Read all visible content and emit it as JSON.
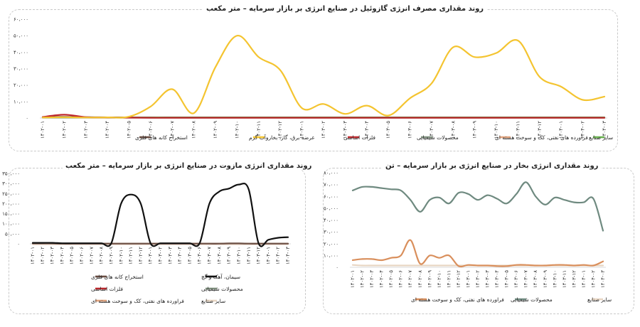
{
  "chart_data": [
    {
      "type": "line",
      "title": "روند مقداری مصرف انرژی گازوئیل در صنایع انرژی بر بازار سرمایه – متر مکعب",
      "yticks": [
        "۰",
        "۱۰،۰۰۰",
        "۲۰،۰۰۰",
        "۳۰،۰۰۰",
        "۴۰،۰۰۰",
        "۵۰،۰۰۰",
        "۶۰،۰۰۰"
      ],
      "ylim": [
        0,
        60000
      ],
      "grid": false,
      "legend": "bottom",
      "categories": [
        "۱۴۰۲-۰۱",
        "۱۴۰۲-۰۲",
        "۱۴۰۲-۰۳",
        "۱۴۰۲-۰۴",
        "۱۴۰۲-۰۵",
        "۱۴۰۲-۰۶",
        "۱۴۰۲-۰۷",
        "۱۴۰۲-۰۸",
        "۱۴۰۲-۰۹",
        "۱۴۰۲-۱۰",
        "۱۴۰۲-۱۱",
        "۱۴۰۲-۱۲",
        "۱۴۰۳-۰۱",
        "۱۴۰۳-۰۲",
        "۱۴۰۳-۰۳",
        "۱۴۰۳-۰۴",
        "۱۴۰۳-۰۵",
        "۱۴۰۳-۰۶",
        "۱۴۰۳-۰۷",
        "۱۴۰۳-۰۸",
        "۱۴۰۳-۰۹",
        "۱۴۰۳-۱۰",
        "۱۴۰۳-۱۱",
        "۱۴۰۳-۱۲",
        "۱۴۰۴-۰۱",
        "۱۴۰۴-۰۲",
        "۱۴۰۴-۰۳"
      ],
      "series": [
        {
          "name": "استخراج کانه های فلزی",
          "color": "#6b4e43",
          "values": [
            600,
            700,
            500,
            400,
            300,
            200,
            200,
            200,
            200,
            200,
            200,
            200,
            200,
            200,
            200,
            200,
            200,
            200,
            200,
            200,
            200,
            200,
            200,
            200,
            200,
            200,
            200
          ]
        },
        {
          "name": "عرضه برق، گاز، بخاروآب گرم",
          "color": "#f4c430",
          "values": [
            300,
            500,
            300,
            400,
            800,
            7000,
            17500,
            3000,
            31000,
            50000,
            37000,
            29000,
            6000,
            8500,
            2500,
            7500,
            1500,
            12000,
            21000,
            43000,
            37000,
            39500,
            47000,
            25000,
            19000,
            11000,
            13000
          ]
        },
        {
          "name": "فلزات اساسی",
          "color": "#c0282d",
          "values": [
            600,
            2000,
            500,
            300,
            200,
            150,
            150,
            150,
            150,
            150,
            150,
            150,
            150,
            150,
            150,
            150,
            150,
            150,
            150,
            150,
            150,
            150,
            150,
            150,
            150,
            150,
            150
          ]
        },
        {
          "name": "محصولات شیمیایی",
          "color": "#7f8f7e",
          "values": [
            200,
            200,
            200,
            200,
            200,
            200,
            200,
            200,
            200,
            200,
            200,
            200,
            200,
            200,
            200,
            200,
            200,
            200,
            200,
            200,
            200,
            200,
            200,
            200,
            200,
            200,
            200
          ]
        },
        {
          "name": "فراورده های نفتی، کک و سوخت هسته ای",
          "color": "#e3a47e",
          "values": [
            300,
            300,
            300,
            300,
            300,
            300,
            300,
            300,
            300,
            300,
            300,
            300,
            300,
            300,
            300,
            300,
            300,
            300,
            300,
            300,
            300,
            300,
            300,
            300,
            300,
            300,
            300
          ]
        },
        {
          "name": "سایر صنایع",
          "color": "#69b24e",
          "values": [
            400,
            400,
            400,
            400,
            400,
            400,
            400,
            400,
            400,
            400,
            400,
            400,
            400,
            400,
            400,
            400,
            400,
            400,
            400,
            400,
            400,
            400,
            400,
            400,
            400,
            400,
            400
          ]
        }
      ]
    },
    {
      "type": "line",
      "title": "روند مقداری انرژی مازوت در صنایع انرژی بر بازار سرمایه – متر مکعب",
      "yticks": [
        "۰",
        "۵۰،۰۰۰",
        "۱۰۰،۰۰۰",
        "۱۵۰،۰۰۰",
        "۲۰۰،۰۰۰",
        "۲۵۰،۰۰۰",
        "۳۰۰،۰۰۰",
        "۳۵۰،۰۰۰"
      ],
      "ylim": [
        0,
        350000
      ],
      "grid": false,
      "legend": "bottom",
      "categories": [
        "۱۴۰۲-۰۱",
        "۱۴۰۲-۰۲",
        "۱۴۰۲-۰۳",
        "۱۴۰۲-۰۴",
        "۱۴۰۲-۰۵",
        "۱۴۰۲-۰۶",
        "۱۴۰۲-۰۷",
        "۱۴۰۲-۰۸",
        "۱۴۰۲-۰۹",
        "۱۴۰۲-۱۰",
        "۱۴۰۲-۱۱",
        "۱۴۰۲-۱۲",
        "۱۴۰۳-۰۱",
        "۱۴۰۳-۰۲",
        "۱۴۰۳-۰۳",
        "۱۴۰۳-۰۴",
        "۱۴۰۳-۰۵",
        "۱۴۰۳-۰۶",
        "۱۴۰۳-۰۷",
        "۱۴۰۳-۰۸",
        "۱۴۰۳-۰۹",
        "۱۴۰۳-۱۰",
        "۱۴۰۳-۱۱",
        "۱۴۰۳-۱۲",
        "۱۴۰۴-۰۱",
        "۱۴۰۴-۰۲",
        "۱۴۰۴-۰۳"
      ],
      "series": [
        {
          "name": "استخراج کانه های فلزی",
          "color": "#6b4e43",
          "values": [
            2000,
            2000,
            2000,
            1000,
            1000,
            1000,
            1000,
            1000,
            1000,
            1000,
            1000,
            1000,
            1000,
            1000,
            1000,
            1000,
            1000,
            1000,
            1000,
            1000,
            2000,
            2000,
            1000,
            1000,
            1000,
            1000,
            1000
          ]
        },
        {
          "name": "سیمان، آهک و گچ",
          "color": "#111111",
          "values": [
            5000,
            5000,
            5000,
            3000,
            3000,
            3000,
            3000,
            3000,
            3000,
            200000,
            245000,
            200000,
            3000,
            3000,
            3000,
            3000,
            3000,
            3000,
            200000,
            260000,
            275000,
            295000,
            270000,
            3000,
            20000,
            30000,
            33000
          ]
        },
        {
          "name": "فلزات اساسی",
          "color": "#c0282d",
          "values": [
            0,
            0,
            0,
            0,
            0,
            0,
            0,
            0,
            0,
            0,
            0,
            0,
            0,
            0,
            0,
            0,
            0,
            0,
            0,
            0,
            0,
            0,
            0,
            0,
            0,
            0,
            0
          ]
        },
        {
          "name": "محصولات شیمیایی",
          "color": "#7f8f7e",
          "values": [
            0,
            0,
            0,
            0,
            0,
            0,
            0,
            0,
            0,
            0,
            0,
            0,
            0,
            0,
            0,
            0,
            0,
            0,
            0,
            0,
            0,
            0,
            0,
            0,
            0,
            0,
            0
          ]
        },
        {
          "name": "فراورده های نفتی، کک و سوخت هسته ای",
          "color": "#e3a47e",
          "values": [
            0,
            0,
            0,
            0,
            0,
            0,
            0,
            0,
            0,
            0,
            0,
            0,
            0,
            0,
            0,
            0,
            0,
            0,
            0,
            0,
            0,
            0,
            0,
            0,
            0,
            0,
            0
          ]
        },
        {
          "name": "سایر صنایع",
          "color": "#e8d6c3",
          "values": [
            0,
            0,
            0,
            0,
            0,
            0,
            0,
            0,
            0,
            0,
            0,
            0,
            0,
            0,
            0,
            0,
            0,
            0,
            0,
            0,
            0,
            0,
            0,
            0,
            0,
            0,
            0
          ]
        }
      ]
    },
    {
      "type": "line",
      "title": "روند مقداری انرژی بخار در صنایع انرژی بر بازار سرمایه – تن",
      "yticks": [
        "۰",
        "۱۰،۰۰۰",
        "۲۰،۰۰۰",
        "۳۰،۰۰۰",
        "۴۰،۰۰۰",
        "۵۰،۰۰۰",
        "۶۰،۰۰۰",
        "۷۰،۰۰۰",
        "۸۰،۰۰۰"
      ],
      "ylim": [
        0,
        80000
      ],
      "grid": false,
      "legend": "bottom",
      "categories": [
        "۱۴۰۲-۰۱",
        "۱۴۰۲-۰۲",
        "۱۴۰۲-۰۳",
        "۱۴۰۲-۰۴",
        "۱۴۰۲-۰۵",
        "۱۴۰۲-۰۶",
        "۱۴۰۲-۰۷",
        "۱۴۰۲-۰۸",
        "۱۴۰۲-۰۹",
        "۱۴۰۲-۱۰",
        "۱۴۰۲-۱۱",
        "۱۴۰۲-۱۲",
        "۱۴۰۳-۰۱",
        "۱۴۰۳-۰۲",
        "۱۴۰۳-۰۳",
        "۱۴۰۳-۰۴",
        "۱۴۰۳-۰۵",
        "۱۴۰۳-۰۶",
        "۱۴۰۳-۰۷",
        "۱۴۰۳-۰۸",
        "۱۴۰۳-۰۹",
        "۱۴۰۳-۱۰",
        "۱۴۰۳-۱۱",
        "۱۴۰۳-۱۲",
        "۱۴۰۴-۰۱",
        "۱۴۰۴-۰۲",
        "۱۴۰۴-۰۳"
      ],
      "series": [
        {
          "name": "فراورده های نفتی، کک و سوخت هسته ای",
          "color": "#d98f5c",
          "values": [
            6000,
            7000,
            7000,
            6000,
            8000,
            10000,
            23000,
            3000,
            10000,
            8000,
            10000,
            1000,
            2000,
            1500,
            1500,
            1000,
            1000,
            2000,
            2000,
            1500,
            1500,
            2000,
            2000,
            1500,
            2000,
            1500,
            5000
          ]
        },
        {
          "name": "محصولات شیمیایی",
          "color": "#6f8a80",
          "values": [
            65000,
            68000,
            68000,
            67000,
            66000,
            65000,
            57000,
            47000,
            57000,
            59000,
            54000,
            63000,
            62000,
            57000,
            61000,
            58000,
            54000,
            62000,
            72000,
            60000,
            53000,
            59000,
            57000,
            55000,
            55000,
            58000,
            31000
          ]
        },
        {
          "name": "سایر صنایع",
          "color": "#e8d6c3",
          "values": [
            2000,
            1500,
            1500,
            1500,
            1500,
            1500,
            1500,
            1500,
            1500,
            1500,
            1500,
            1500,
            1500,
            1500,
            1500,
            1500,
            1500,
            1500,
            1500,
            1500,
            1500,
            1500,
            1500,
            1500,
            1500,
            1500,
            1500
          ]
        }
      ]
    }
  ]
}
